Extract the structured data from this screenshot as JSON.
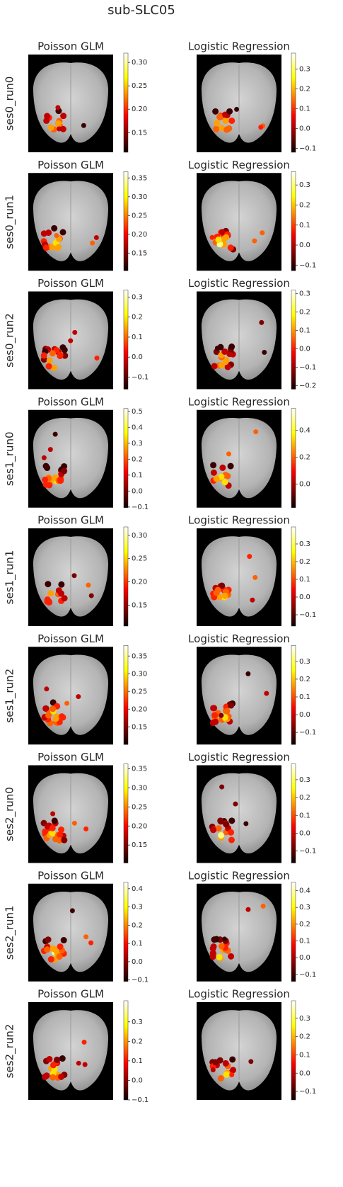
{
  "title": "sub-SLC05",
  "chart_data": [
    {
      "type": "image",
      "title": "Poisson GLM",
      "ylabel": "ses0_run0",
      "colormap": "hot",
      "clim": [
        0.108,
        0.32
      ],
      "cticks": [
        0.15,
        {
          "value": 0.2,
          "label": "0.20"
        },
        0.25,
        {
          "value": 0.3,
          "label": "0.30"
        }
      ]
    },
    {
      "type": "image",
      "title": "Logistic Regression",
      "colormap": "hot",
      "clim": [
        -0.12,
        0.38
      ],
      "cticks": [
        {
          "value": -0.1,
          "label": "−0.1"
        },
        {
          "value": 0,
          "label": "0.0"
        },
        0.1,
        0.2,
        0.3
      ]
    },
    {
      "type": "image",
      "title": "Poisson GLM",
      "ylabel": "ses0_run1",
      "colormap": "hot",
      "clim": [
        0.103,
        0.367
      ],
      "cticks": [
        0.15,
        {
          "value": 0.2,
          "label": "0.20"
        },
        0.25,
        {
          "value": 0.3,
          "label": "0.30"
        },
        0.35
      ]
    },
    {
      "type": "image",
      "title": "Logistic Regression",
      "colormap": "hot",
      "clim": [
        -0.128,
        0.367
      ],
      "cticks": [
        {
          "value": -0.1,
          "label": "−0.1"
        },
        {
          "value": 0,
          "label": "0.0"
        },
        0.1,
        0.2,
        0.3
      ]
    },
    {
      "type": "image",
      "title": "Poisson GLM",
      "ylabel": "ses0_run2",
      "colormap": "hot",
      "clim": [
        -0.16,
        0.335
      ],
      "cticks": [
        {
          "value": -0.1,
          "label": "−0.1"
        },
        {
          "value": 0,
          "label": "0.0"
        },
        0.1,
        0.2,
        0.3
      ]
    },
    {
      "type": "image",
      "title": "Logistic Regression",
      "colormap": "hot",
      "clim": [
        -0.22,
        0.32
      ],
      "cticks": [
        {
          "value": -0.2,
          "label": "−0.2"
        },
        {
          "value": -0.1,
          "label": "−0.1"
        },
        {
          "value": 0,
          "label": "0.0"
        },
        0.1,
        0.2,
        0.3
      ]
    },
    {
      "type": "image",
      "title": "Poisson GLM",
      "ylabel": "ses1_run0",
      "colormap": "hot",
      "clim": [
        -0.104,
        0.518
      ],
      "cticks": [
        {
          "value": -0.1,
          "label": "−0.1"
        },
        {
          "value": 0,
          "label": "0.0"
        },
        0.1,
        0.2,
        0.3,
        0.4,
        0.5
      ]
    },
    {
      "type": "image",
      "title": "Logistic Regression",
      "colormap": "hot",
      "clim": [
        -0.174,
        0.563
      ],
      "cticks": [
        {
          "value": 0,
          "label": "0.0"
        },
        0.2,
        0.4
      ]
    },
    {
      "type": "image",
      "title": "Poisson GLM",
      "ylabel": "ses1_run1",
      "colormap": "hot",
      "clim": [
        0.105,
        0.318
      ],
      "cticks": [
        0.15,
        {
          "value": 0.2,
          "label": "0.20"
        },
        0.25,
        {
          "value": 0.3,
          "label": "0.30"
        }
      ]
    },
    {
      "type": "image",
      "title": "Logistic Regression",
      "colormap": "hot",
      "clim": [
        -0.164,
        0.396
      ],
      "cticks": [
        {
          "value": -0.1,
          "label": "−0.1"
        },
        {
          "value": 0,
          "label": "0.0"
        },
        0.1,
        0.2,
        0.3
      ]
    },
    {
      "type": "image",
      "title": "Poisson GLM",
      "ylabel": "ses1_run2",
      "colormap": "hot",
      "clim": [
        0.1,
        0.38
      ],
      "cticks": [
        0.15,
        {
          "value": 0.2,
          "label": "0.20"
        },
        0.25,
        {
          "value": 0.3,
          "label": "0.30"
        },
        0.35
      ]
    },
    {
      "type": "image",
      "title": "Logistic Regression",
      "colormap": "hot",
      "clim": [
        -0.168,
        0.39
      ],
      "cticks": [
        {
          "value": -0.1,
          "label": "−0.1"
        },
        {
          "value": 0,
          "label": "0.0"
        },
        0.1,
        0.2,
        0.3
      ]
    },
    {
      "type": "image",
      "title": "Poisson GLM",
      "ylabel": "ses2_run0",
      "colormap": "hot",
      "clim": [
        0.103,
        0.363
      ],
      "cticks": [
        0.15,
        {
          "value": 0.2,
          "label": "0.20"
        },
        0.25,
        {
          "value": 0.3,
          "label": "0.30"
        },
        0.35
      ]
    },
    {
      "type": "image",
      "title": "Logistic Regression",
      "colormap": "hot",
      "clim": [
        -0.167,
        0.389
      ],
      "cticks": [
        {
          "value": -0.1,
          "label": "−0.1"
        },
        {
          "value": 0,
          "label": "0.0"
        },
        0.1,
        0.2,
        0.3
      ]
    },
    {
      "type": "image",
      "title": "Poisson GLM",
      "ylabel": "ses2_run1",
      "colormap": "hot",
      "clim": [
        -0.108,
        0.435
      ],
      "cticks": [
        {
          "value": -0.1,
          "label": "−0.1"
        },
        {
          "value": 0,
          "label": "0.0"
        },
        0.1,
        0.2,
        0.3,
        0.4
      ]
    },
    {
      "type": "image",
      "title": "Logistic Regression",
      "colormap": "hot",
      "clim": [
        -0.142,
        0.45
      ],
      "cticks": [
        {
          "value": -0.1,
          "label": "−0.1"
        },
        {
          "value": 0,
          "label": "0.0"
        },
        0.1,
        0.2,
        0.3,
        0.4
      ]
    },
    {
      "type": "image",
      "title": "Poisson GLM",
      "ylabel": "ses2_run2",
      "colormap": "hot",
      "clim": [
        -0.1,
        0.408
      ],
      "cticks": [
        {
          "value": -0.1,
          "label": "−0.1"
        },
        {
          "value": 0,
          "label": "0.0"
        },
        0.1,
        0.2,
        0.3
      ]
    },
    {
      "type": "image",
      "title": "Logistic Regression",
      "colormap": "hot",
      "clim": [
        -0.146,
        0.396
      ],
      "cticks": [
        {
          "value": -0.1,
          "label": "−0.1"
        },
        {
          "value": 0,
          "label": "0.0"
        },
        0.1,
        0.2,
        0.3
      ]
    }
  ]
}
